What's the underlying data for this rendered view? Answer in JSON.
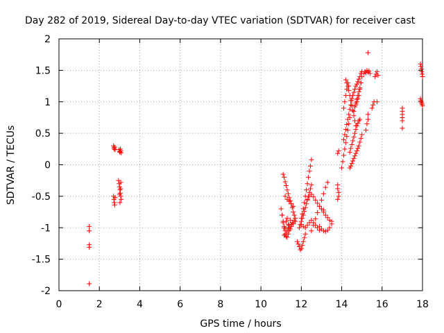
{
  "chart_data": {
    "type": "scatter",
    "title": "Day 282 of 2019, Sidereal Day-to-day VTEC variation (SDTVAR) for receiver cast",
    "xlabel": "GPS time / hours",
    "ylabel": "SDTVAR / TECUs",
    "xlim": [
      0,
      18
    ],
    "ylim": [
      -2,
      2
    ],
    "x_ticks": [
      0,
      2,
      4,
      6,
      8,
      10,
      12,
      14,
      16,
      18
    ],
    "y_ticks": [
      -2,
      -1.5,
      -1,
      -0.5,
      0,
      0.5,
      1,
      1.5,
      2
    ],
    "x_tick_labels": [
      "0",
      "2",
      "4",
      "6",
      "8",
      "10",
      "12",
      "14",
      "16",
      "18"
    ],
    "y_tick_labels": [
      "-2",
      "-1.5",
      "-1",
      "-0.5",
      "0",
      "0.5",
      "1",
      "1.5",
      "2"
    ],
    "grid": true,
    "marker": "plus",
    "color": "#ff0000",
    "segments": [
      {
        "x": [
          1.5,
          1.5,
          1.5,
          1.5,
          1.5
        ],
        "y": [
          -0.98,
          -1.05,
          -1.27,
          -1.31,
          -1.89
        ]
      },
      {
        "x": [
          2.7,
          2.72,
          2.74,
          2.76,
          2.78
        ],
        "y": [
          0.3,
          0.27,
          0.25,
          0.28,
          0.24
        ]
      },
      {
        "x": [
          2.7,
          2.72,
          2.74,
          2.76,
          2.78
        ],
        "y": [
          -0.5,
          -0.55,
          -0.6,
          -0.64,
          -0.52
        ]
      },
      {
        "x": [
          2.98,
          3.0,
          3.02,
          3.04,
          3.06,
          3.08
        ],
        "y": [
          0.24,
          0.21,
          0.2,
          0.25,
          0.22,
          0.19
        ]
      },
      {
        "x": [
          2.95,
          2.98,
          3.0,
          3.02,
          3.04,
          3.06,
          3.08,
          3.02,
          3.05,
          3.0,
          3.06
        ],
        "y": [
          -0.25,
          -0.3,
          -0.35,
          -0.4,
          -0.45,
          -0.5,
          -0.55,
          -0.6,
          -0.38,
          -0.47,
          -0.28
        ]
      },
      {
        "x": [
          11.0,
          11.05,
          11.1,
          11.15,
          11.2,
          11.25,
          11.3,
          11.35,
          11.4,
          11.5
        ],
        "y": [
          -0.7,
          -0.8,
          -0.9,
          -1.0,
          -1.05,
          -1.1,
          -1.15,
          -1.1,
          -1.05,
          -0.95
        ]
      },
      {
        "x": [
          11.05,
          11.1,
          11.15,
          11.2,
          11.25,
          11.3,
          11.35,
          11.4,
          11.45
        ],
        "y": [
          -0.8,
          -0.92,
          -0.98,
          -1.02,
          -0.9,
          -0.85,
          -0.95,
          -1.0,
          -0.88
        ]
      },
      {
        "x": [
          11.1,
          11.15,
          11.2,
          11.25,
          11.3,
          11.35,
          11.4,
          11.45,
          11.5,
          11.55,
          11.6,
          11.65,
          11.7
        ],
        "y": [
          -0.15,
          -0.2,
          -0.27,
          -0.33,
          -0.4,
          -0.46,
          -0.52,
          -0.57,
          -0.62,
          -0.68,
          -0.75,
          -0.8,
          -0.85
        ]
      },
      {
        "x": [
          11.15,
          11.2,
          11.25,
          11.3,
          11.35,
          11.4,
          11.45,
          11.5,
          11.55,
          11.6,
          11.65,
          11.7
        ],
        "y": [
          -1.12,
          -1.1,
          -1.14,
          -1.05,
          -1.0,
          -0.96,
          -1.02,
          -0.98,
          -0.92,
          -0.94,
          -0.88,
          -0.9
        ]
      },
      {
        "x": [
          11.2,
          11.3,
          11.4,
          11.5,
          11.6
        ],
        "y": [
          -0.5,
          -0.55,
          -0.58,
          -0.62,
          -0.66
        ]
      },
      {
        "x": [
          11.8,
          11.85,
          11.9,
          11.95,
          12.0,
          12.05,
          12.1,
          12.15,
          12.2
        ],
        "y": [
          -1.22,
          -1.26,
          -1.3,
          -1.35,
          -1.33,
          -1.28,
          -1.22,
          -1.16,
          -1.1
        ]
      },
      {
        "x": [
          11.9,
          11.95,
          12.0,
          12.05,
          12.1,
          12.15,
          12.2,
          12.25,
          12.3,
          12.35,
          12.4,
          12.45,
          12.5
        ],
        "y": [
          -1.0,
          -0.95,
          -0.9,
          -0.85,
          -0.8,
          -0.74,
          -0.68,
          -0.62,
          -0.56,
          -0.5,
          -0.44,
          -0.38,
          -0.32
        ]
      },
      {
        "x": [
          12.0,
          12.05,
          12.1,
          12.15,
          12.2,
          12.25,
          12.3,
          12.35,
          12.4,
          12.45,
          12.5
        ],
        "y": [
          -0.85,
          -0.78,
          -0.7,
          -0.6,
          -0.5,
          -0.4,
          -0.3,
          -0.2,
          -0.1,
          -0.02,
          0.08
        ]
      },
      {
        "x": [
          12.0,
          12.1,
          12.2,
          12.3,
          12.4,
          12.5,
          12.6,
          12.7,
          12.8,
          12.9
        ],
        "y": [
          -0.95,
          -0.98,
          -1.0,
          -0.96,
          -0.92,
          -0.88,
          -0.92,
          -0.96,
          -1.0,
          -1.04
        ]
      },
      {
        "x": [
          12.3,
          12.4,
          12.5,
          12.6,
          12.7,
          12.8,
          12.9,
          13.0,
          13.1
        ],
        "y": [
          -0.55,
          -0.5,
          -0.47,
          -0.51,
          -0.56,
          -0.61,
          -0.66,
          -0.7,
          -0.72
        ]
      },
      {
        "x": [
          12.5,
          12.6,
          12.7,
          12.8,
          12.9,
          13.0,
          13.1,
          13.2,
          13.3
        ],
        "y": [
          -1.05,
          -0.96,
          -0.86,
          -0.76,
          -0.66,
          -0.56,
          -0.46,
          -0.36,
          -0.28
        ]
      },
      {
        "x": [
          12.9,
          13.0,
          13.1,
          13.2,
          13.3,
          13.4,
          13.5
        ],
        "y": [
          -0.98,
          -1.02,
          -1.05,
          -1.06,
          -1.04,
          -1.0,
          -0.94
        ]
      },
      {
        "x": [
          13.1,
          13.2,
          13.3,
          13.4,
          13.5
        ],
        "y": [
          -0.75,
          -0.8,
          -0.84,
          -0.88,
          -0.9
        ]
      },
      {
        "x": [
          13.8,
          13.8,
          13.85,
          13.85,
          13.8,
          13.8,
          13.85
        ],
        "y": [
          -0.32,
          -0.38,
          -0.44,
          -0.5,
          -0.55,
          0.18,
          0.22
        ]
      },
      {
        "x": [
          14.0,
          14.05,
          14.1,
          14.15,
          14.2,
          14.25,
          14.3,
          14.35,
          14.4
        ],
        "y": [
          -0.05,
          0.05,
          0.15,
          0.25,
          0.35,
          0.45,
          0.55,
          0.65,
          0.75
        ]
      },
      {
        "x": [
          14.1,
          14.15,
          14.2,
          14.25,
          14.3,
          14.35,
          14.4,
          14.45,
          14.5
        ],
        "y": [
          0.4,
          0.48,
          0.56,
          0.64,
          0.72,
          0.8,
          0.88,
          0.95,
          1.02
        ]
      },
      {
        "x": [
          14.1,
          14.15,
          14.2,
          14.25,
          14.3,
          14.35
        ],
        "y": [
          0.9,
          1.0,
          1.1,
          1.2,
          1.3,
          1.25
        ]
      },
      {
        "x": [
          14.2,
          14.25,
          14.3,
          14.35,
          14.4,
          14.45,
          14.5,
          14.55,
          14.6,
          14.65,
          14.7
        ],
        "y": [
          1.35,
          1.3,
          1.25,
          1.18,
          1.1,
          1.02,
          0.94,
          0.86,
          0.78,
          0.7,
          0.62
        ]
      },
      {
        "x": [
          14.4,
          14.45,
          14.5,
          14.55,
          14.6,
          14.65,
          14.7,
          14.75,
          14.8,
          14.85,
          14.9
        ],
        "y": [
          0.2,
          0.26,
          0.32,
          0.38,
          0.44,
          0.5,
          0.56,
          0.62,
          0.66,
          0.7,
          0.72
        ]
      },
      {
        "x": [
          14.4,
          14.45,
          14.5,
          14.55,
          14.6,
          14.65,
          14.7,
          14.75,
          14.8,
          14.85,
          14.9,
          14.95,
          15.0
        ],
        "y": [
          -0.05,
          -0.02,
          0.02,
          0.06,
          0.1,
          0.14,
          0.18,
          0.22,
          0.26,
          0.3,
          0.36,
          0.42,
          0.48
        ]
      },
      {
        "x": [
          14.5,
          14.55,
          14.6,
          14.65,
          14.7,
          14.75,
          14.8,
          14.85,
          14.9,
          14.95
        ],
        "y": [
          1.05,
          1.1,
          1.15,
          1.2,
          1.25,
          1.28,
          1.32,
          1.36,
          1.4,
          1.45
        ]
      },
      {
        "x": [
          14.6,
          14.65,
          14.7,
          14.75,
          14.8,
          14.85,
          14.9,
          14.95,
          15.0
        ],
        "y": [
          0.85,
          0.92,
          0.98,
          1.04,
          1.1,
          1.16,
          1.22,
          1.3,
          1.4
        ]
      },
      {
        "x": [
          14.7,
          14.75,
          14.8,
          14.85,
          14.9,
          14.95,
          15.0
        ],
        "y": [
          0.95,
          1.0,
          1.05,
          1.1,
          1.2,
          1.3,
          1.48
        ]
      },
      {
        "x": [
          15.1,
          15.15,
          15.2,
          15.25,
          15.3,
          15.35,
          15.4
        ],
        "y": [
          1.45,
          1.48,
          1.46,
          1.5,
          1.47,
          1.49,
          1.45
        ]
      },
      {
        "x": [
          15.2,
          15.25,
          15.3,
          15.3,
          15.3
        ],
        "y": [
          0.55,
          0.65,
          0.72,
          0.8,
          1.78
        ]
      },
      {
        "x": [
          15.5,
          15.55,
          15.6,
          15.65,
          15.7,
          15.75,
          15.8,
          15.75
        ],
        "y": [
          0.9,
          0.95,
          1.0,
          1.4,
          1.44,
          1.48,
          1.42,
          1.0
        ]
      },
      {
        "x": [
          17.0,
          17.0,
          17.0,
          17.0,
          17.0,
          17.0
        ],
        "y": [
          0.58,
          0.7,
          0.75,
          0.8,
          0.85,
          0.9
        ]
      },
      {
        "x": [
          17.9,
          17.92,
          17.94,
          17.96,
          17.98,
          18.0,
          17.9,
          17.92,
          17.94,
          17.96,
          17.98,
          18.0
        ],
        "y": [
          1.6,
          1.56,
          1.52,
          1.48,
          1.44,
          1.4,
          1.05,
          1.02,
          1.0,
          0.98,
          0.96,
          0.94
        ]
      }
    ]
  }
}
